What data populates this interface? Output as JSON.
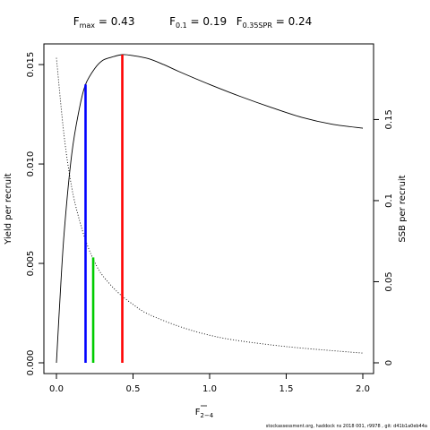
{
  "chart_data": {
    "type": "line",
    "title": {
      "fmax": {
        "label": "F",
        "sub": "max",
        "value": "0.43"
      },
      "f01": {
        "label": "F",
        "sub": "0.1",
        "value": "0.19"
      },
      "f035": {
        "label": "F",
        "sub": "0.35SPR",
        "value": "0.24"
      }
    },
    "xlabel": {
      "main": "F",
      "sub": "2−4"
    },
    "ylabel_left": "Yield per recruit",
    "ylabel_right": "SSB per recruit",
    "xlim": [
      0,
      2
    ],
    "ylim_left": [
      0,
      0.0155
    ],
    "ylim_right": [
      0,
      0.19
    ],
    "x_ticks": [
      0,
      0.5,
      1.0,
      1.5,
      2.0
    ],
    "x_tick_labels": [
      "0.0",
      "0.5",
      "1.0",
      "1.5",
      "2.0"
    ],
    "y_left_ticks": [
      0,
      0.005,
      0.01,
      0.015
    ],
    "y_left_tick_labels": [
      "0.000",
      "0.005",
      "0.010",
      "0.015"
    ],
    "y_right_ticks": [
      0,
      0.05,
      0.1,
      0.15
    ],
    "y_right_tick_labels": [
      "0",
      "0.05",
      "0.1",
      "0.15"
    ],
    "grid": false,
    "series": [
      {
        "style": "solid",
        "axis": "left",
        "x": [
          0,
          0.02,
          0.05,
          0.1,
          0.15,
          0.19,
          0.25,
          0.3,
          0.35,
          0.43,
          0.5,
          0.6,
          0.7,
          0.8,
          1.0,
          1.2,
          1.4,
          1.6,
          1.8,
          2.0
        ],
        "y": [
          0,
          0.0028,
          0.0065,
          0.0105,
          0.0128,
          0.014,
          0.0148,
          0.0152,
          0.01535,
          0.0155,
          0.01545,
          0.0153,
          0.015,
          0.01465,
          0.014,
          0.0134,
          0.01285,
          0.01235,
          0.012,
          0.0118
        ]
      },
      {
        "style": "dotted",
        "axis": "right",
        "x": [
          0,
          0.05,
          0.1,
          0.15,
          0.2,
          0.25,
          0.3,
          0.4,
          0.5,
          0.6,
          0.8,
          1.0,
          1.2,
          1.5,
          1.8,
          2.0
        ],
        "y": [
          0.188,
          0.14,
          0.108,
          0.088,
          0.073,
          0.062,
          0.054,
          0.0435,
          0.036,
          0.03,
          0.0225,
          0.017,
          0.0135,
          0.01,
          0.0075,
          0.006
        ]
      }
    ],
    "reference_lines": [
      {
        "name": "F0.1",
        "x": 0.19,
        "y": 0.014,
        "color": "#0000ff"
      },
      {
        "name": "F0.35SPR",
        "x": 0.24,
        "y": 0.0053,
        "color": "#00cc00"
      },
      {
        "name": "Fmax",
        "x": 0.43,
        "y": 0.0155,
        "color": "#ff0000"
      }
    ]
  },
  "footer": "stockassessment.org,  haddock  ns  2018  001,  r9978 ,  git:  d41b1a0eb44a"
}
